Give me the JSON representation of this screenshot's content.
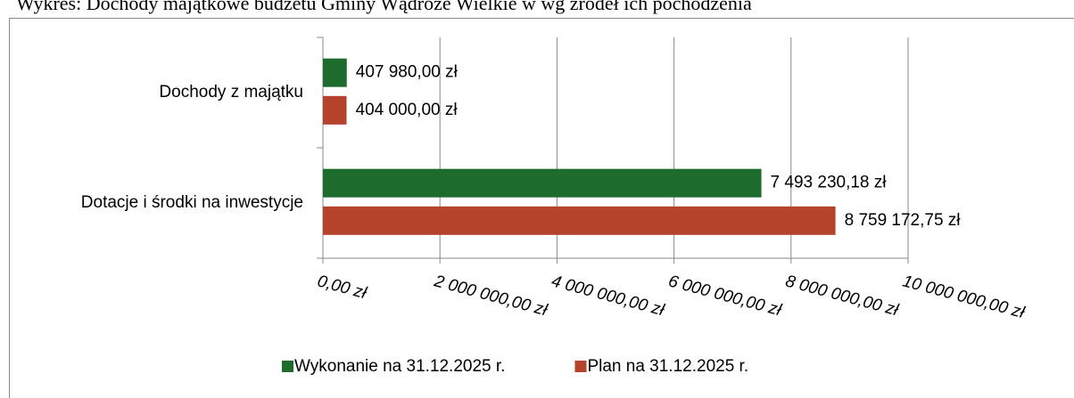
{
  "chart_data": {
    "type": "barh",
    "title": "Wykres: Dochody majątkowe budżetu Gminy Wądroże Wielkie w  wg źródeł ich pochodzenia",
    "categories": [
      "Dochody z majątku",
      "Dotacje i środki na inwestycje"
    ],
    "series": [
      {
        "name": "Wykonanie na 31.12.2025 r.",
        "color": "#1e6b2e",
        "values": [
          407980,
          7493230.18
        ],
        "value_labels": [
          "407 980,00 zł",
          "7 493 230,18 zł"
        ]
      },
      {
        "name": "Plan na 31.12.2025 r.",
        "color": "#b3432a",
        "values": [
          404000,
          8759172.75
        ],
        "value_labels": [
          "404 000,00 zł",
          "8 759 172,75 zł"
        ]
      }
    ],
    "xlim": [
      0,
      10000000
    ],
    "xticks": [
      {
        "value": 0,
        "label": "0,00 zł"
      },
      {
        "value": 2000000,
        "label": "2 000 000,00 zł"
      },
      {
        "value": 4000000,
        "label": "4 000 000,00 zł"
      },
      {
        "value": 6000000,
        "label": "6 000 000,00 zł"
      },
      {
        "value": 8000000,
        "label": "8 000 000,00 zł"
      },
      {
        "value": 10000000,
        "label": "10 000 000,00 zł"
      }
    ],
    "grid": true,
    "legend": "bottom"
  }
}
